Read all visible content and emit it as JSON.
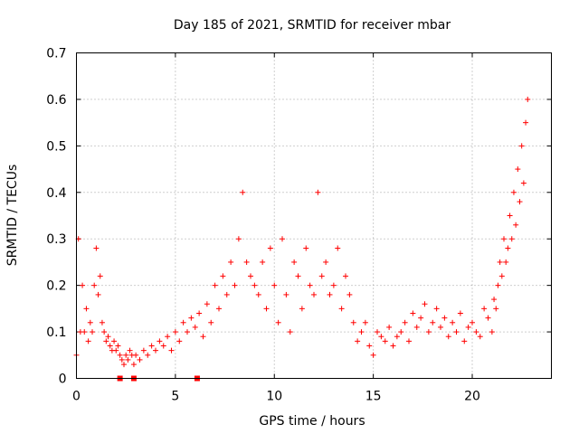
{
  "chart_data": {
    "type": "scatter",
    "title": "Day 185 of 2021, SRMTID for receiver mbar",
    "xlabel": "GPS time / hours",
    "ylabel": "SRMTID / TECUs",
    "xlim": [
      0,
      24
    ],
    "ylim": [
      0,
      0.7
    ],
    "xticks": [
      0,
      5,
      10,
      15,
      20
    ],
    "yticks": [
      0,
      0.1,
      0.2,
      0.3,
      0.4,
      0.5,
      0.6,
      0.7
    ],
    "xtick_labels": [
      "0",
      "5",
      "10",
      "15",
      "20"
    ],
    "ytick_labels": [
      "0",
      "0.1",
      "0.2",
      "0.3",
      "0.4",
      "0.5",
      "0.6",
      "0.7"
    ],
    "marker": "+",
    "grid": true,
    "series": [
      {
        "name": "SRMTID",
        "color": "#ff0000",
        "x": [
          0.0,
          0.1,
          0.2,
          0.3,
          0.4,
          0.5,
          0.6,
          0.7,
          0.8,
          0.9,
          1.0,
          1.1,
          1.2,
          1.3,
          1.4,
          1.5,
          1.6,
          1.7,
          1.8,
          1.9,
          2.0,
          2.1,
          2.2,
          2.3,
          2.4,
          2.5,
          2.6,
          2.7,
          2.8,
          2.9,
          3.0,
          3.2,
          3.4,
          3.6,
          3.8,
          4.0,
          4.2,
          4.4,
          4.6,
          4.8,
          5.0,
          5.2,
          5.4,
          5.6,
          5.8,
          6.0,
          6.2,
          6.4,
          6.6,
          6.8,
          7.0,
          7.2,
          7.4,
          7.6,
          7.8,
          8.0,
          8.2,
          8.4,
          8.6,
          8.8,
          9.0,
          9.2,
          9.4,
          9.6,
          9.8,
          10.0,
          10.2,
          10.4,
          10.6,
          10.8,
          11.0,
          11.2,
          11.4,
          11.6,
          11.8,
          12.0,
          12.2,
          12.4,
          12.6,
          12.8,
          13.0,
          13.2,
          13.4,
          13.6,
          13.8,
          14.0,
          14.2,
          14.4,
          14.6,
          14.8,
          15.0,
          15.2,
          15.4,
          15.6,
          15.8,
          16.0,
          16.2,
          16.4,
          16.6,
          16.8,
          17.0,
          17.2,
          17.4,
          17.6,
          17.8,
          18.0,
          18.2,
          18.4,
          18.6,
          18.8,
          19.0,
          19.2,
          19.4,
          19.6,
          19.8,
          20.0,
          20.2,
          20.4,
          20.6,
          20.8,
          21.0,
          21.1,
          21.2,
          21.3,
          21.4,
          21.5,
          21.6,
          21.7,
          21.8,
          21.9,
          22.0,
          22.1,
          22.2,
          22.3,
          22.4,
          22.5,
          22.6,
          22.7,
          22.8
        ],
        "y": [
          0.05,
          0.3,
          0.1,
          0.2,
          0.1,
          0.15,
          0.08,
          0.12,
          0.1,
          0.2,
          0.28,
          0.18,
          0.22,
          0.12,
          0.1,
          0.08,
          0.09,
          0.07,
          0.06,
          0.08,
          0.06,
          0.07,
          0.05,
          0.04,
          0.03,
          0.05,
          0.04,
          0.06,
          0.05,
          0.03,
          0.05,
          0.04,
          0.06,
          0.05,
          0.07,
          0.06,
          0.08,
          0.07,
          0.09,
          0.06,
          0.1,
          0.08,
          0.12,
          0.1,
          0.13,
          0.11,
          0.14,
          0.09,
          0.16,
          0.12,
          0.2,
          0.15,
          0.22,
          0.18,
          0.25,
          0.2,
          0.3,
          0.4,
          0.25,
          0.22,
          0.2,
          0.18,
          0.25,
          0.15,
          0.28,
          0.2,
          0.12,
          0.3,
          0.18,
          0.1,
          0.25,
          0.22,
          0.15,
          0.28,
          0.2,
          0.18,
          0.4,
          0.22,
          0.25,
          0.18,
          0.2,
          0.28,
          0.15,
          0.22,
          0.18,
          0.12,
          0.08,
          0.1,
          0.12,
          0.07,
          0.05,
          0.1,
          0.09,
          0.08,
          0.11,
          0.07,
          0.09,
          0.1,
          0.12,
          0.08,
          0.14,
          0.11,
          0.13,
          0.16,
          0.1,
          0.12,
          0.15,
          0.11,
          0.13,
          0.09,
          0.12,
          0.1,
          0.14,
          0.08,
          0.11,
          0.12,
          0.1,
          0.09,
          0.15,
          0.13,
          0.1,
          0.17,
          0.15,
          0.2,
          0.25,
          0.22,
          0.3,
          0.25,
          0.28,
          0.35,
          0.3,
          0.4,
          0.33,
          0.45,
          0.38,
          0.5,
          0.42,
          0.55,
          0.6
        ]
      }
    ],
    "axis_markers": {
      "x": [
        2.2,
        2.9,
        6.1
      ],
      "y": 0
    }
  }
}
